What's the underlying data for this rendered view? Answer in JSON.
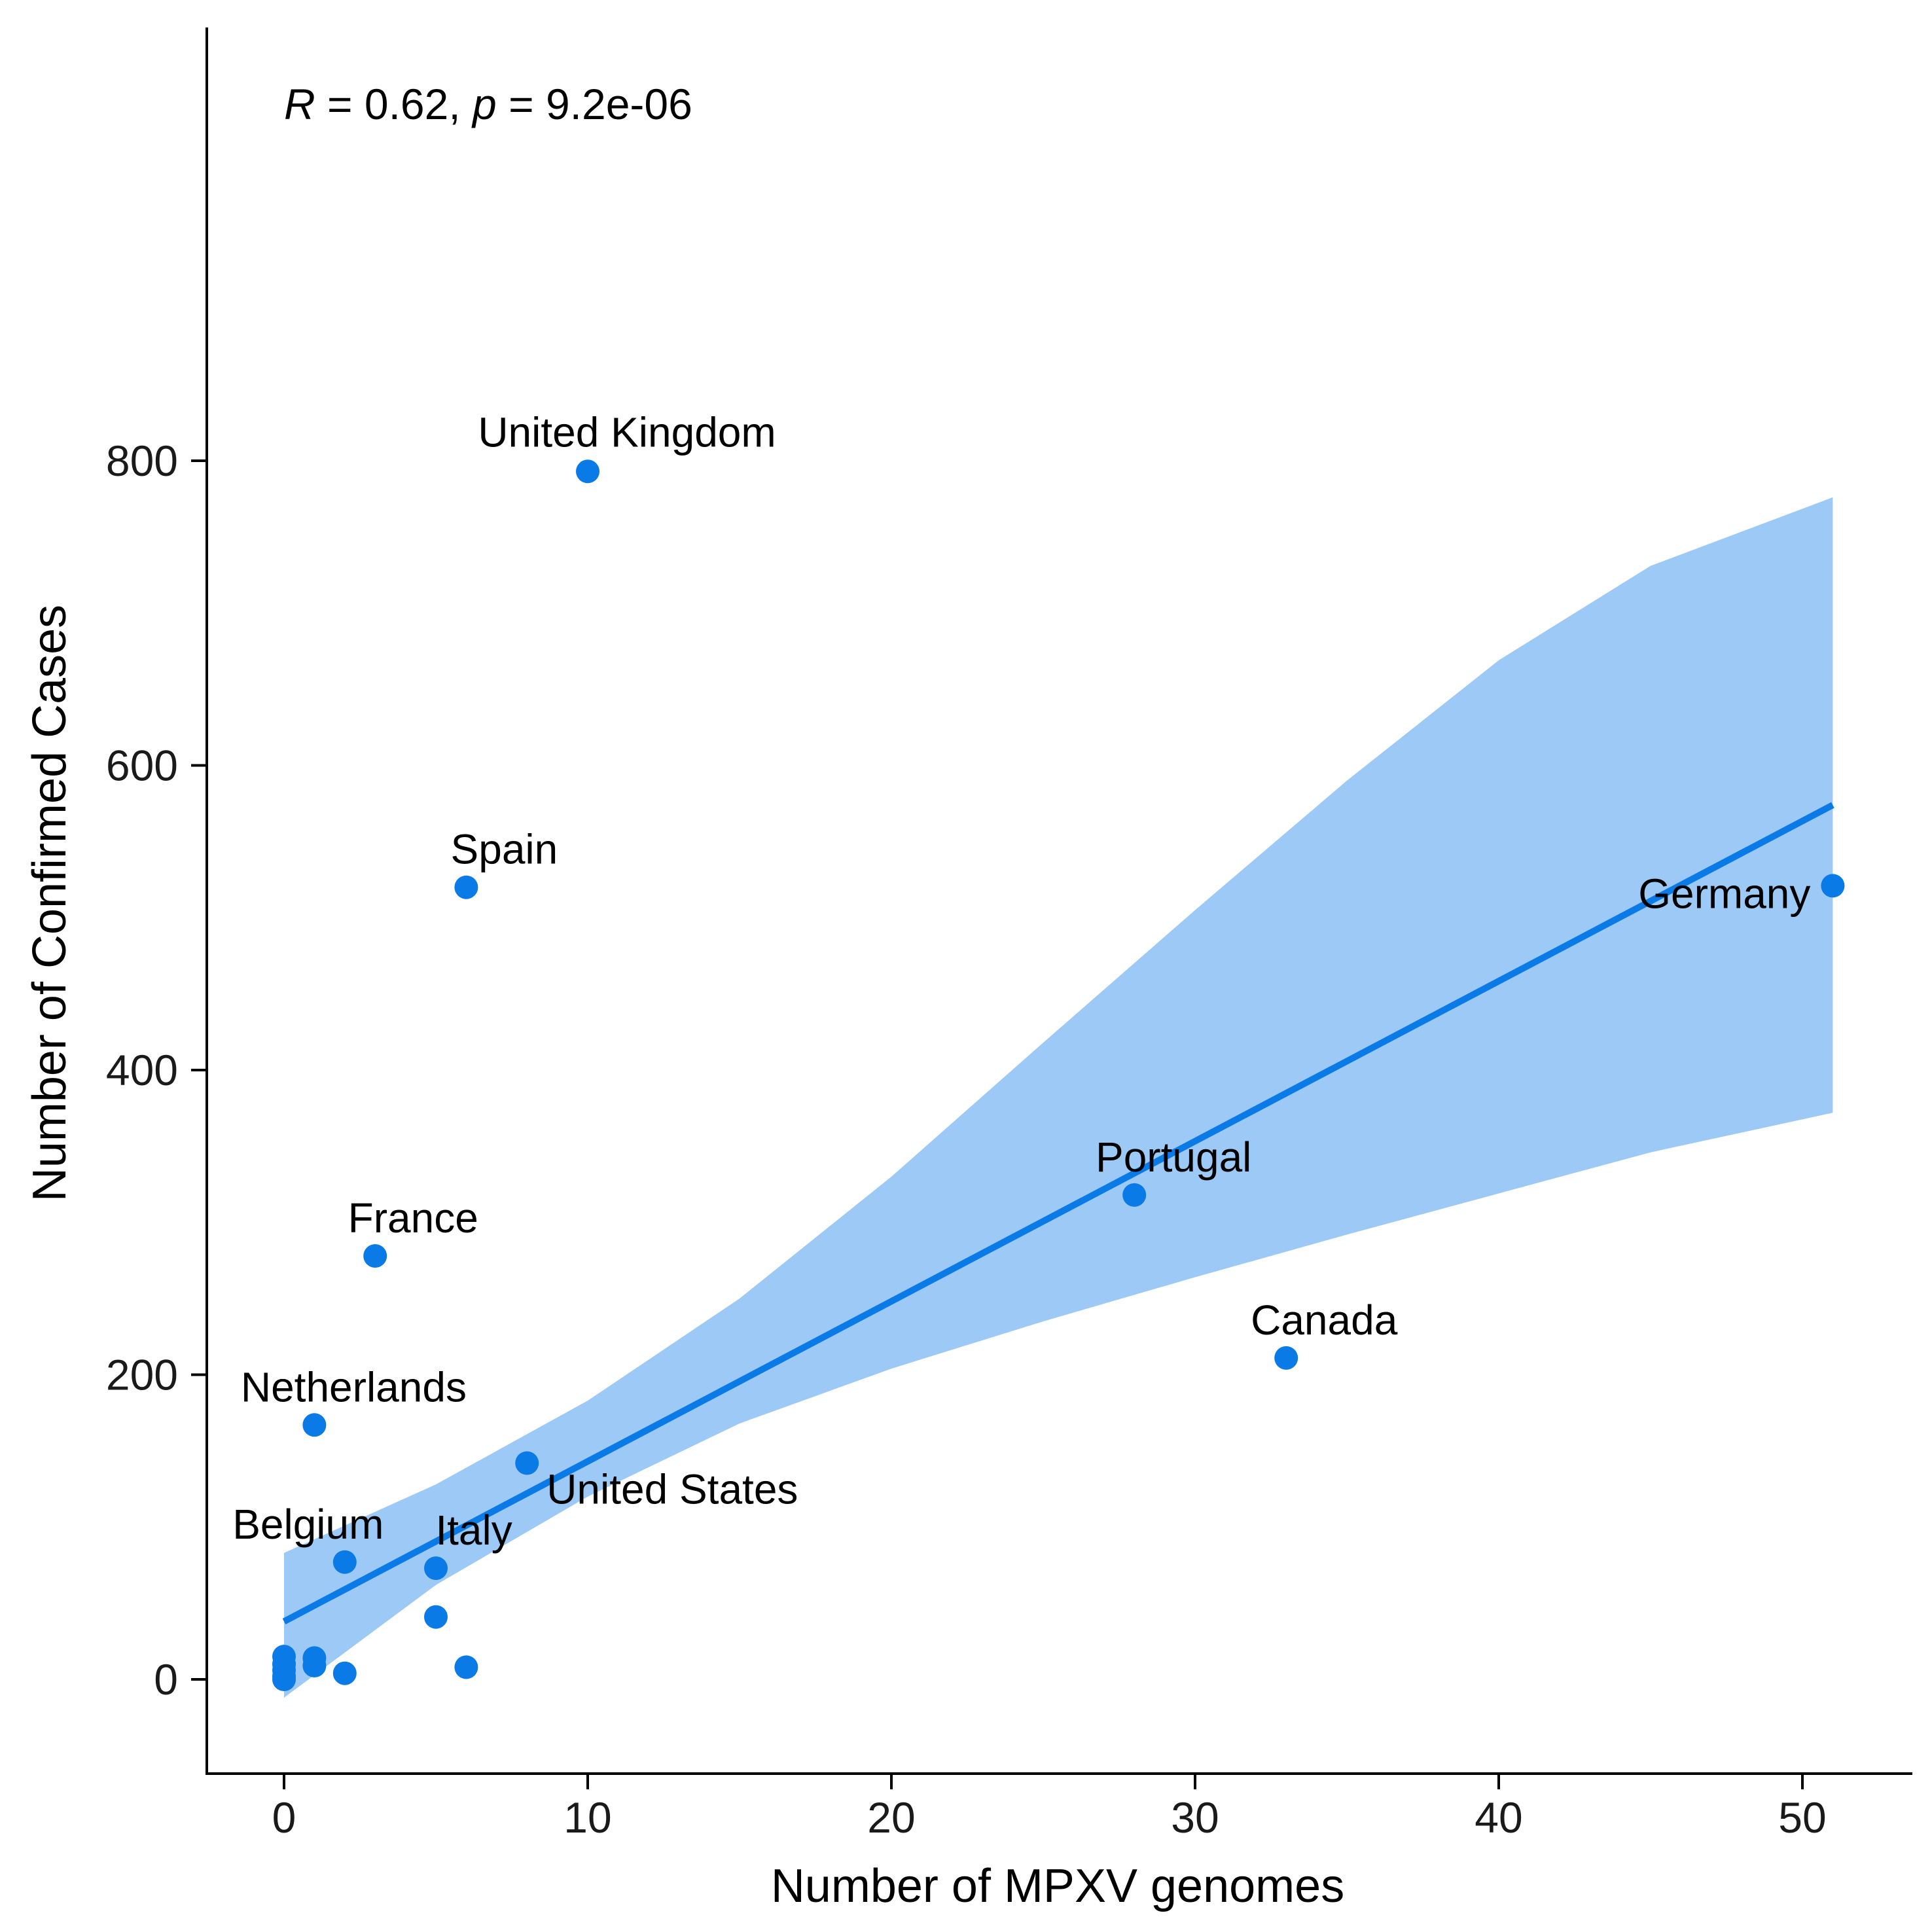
{
  "chart_data": {
    "type": "scatter",
    "title": "",
    "xlabel": "Number of MPXV genomes",
    "ylabel": "Number of Confirmed Cases",
    "xlim": [
      -2.5,
      53.8
    ],
    "ylim": [
      -48,
      866
    ],
    "x_ticks": [
      0,
      10,
      20,
      30,
      40,
      50
    ],
    "y_ticks": [
      0,
      200,
      400,
      600,
      800
    ],
    "grid": false,
    "legend": "none",
    "colors": {
      "points": "#0a7ae6",
      "line": "#0a7ae6",
      "ribbon": "#9cc9f5"
    },
    "annotation": {
      "r_symbol": "R",
      "r_text": " = 0.62, ",
      "p_symbol": "p",
      "p_text": " = 9.2e-06"
    },
    "regression": {
      "x": [
        0,
        51
      ],
      "y": [
        38,
        574
      ]
    },
    "confidence_band": {
      "x": [
        0,
        5,
        10,
        15,
        20,
        25,
        30,
        35,
        40,
        45,
        51
      ],
      "lower": [
        -12,
        62,
        120,
        168,
        204,
        235,
        264,
        292,
        319,
        346,
        372
      ],
      "upper": [
        83,
        128,
        183,
        250,
        330,
        418,
        505,
        590,
        669,
        731,
        776
      ]
    },
    "points": [
      {
        "x": 10,
        "y": 793,
        "label": "United Kingdom"
      },
      {
        "x": 6,
        "y": 520,
        "label": "Spain"
      },
      {
        "x": 51,
        "y": 521,
        "label": "Germany"
      },
      {
        "x": 28,
        "y": 318,
        "label": "Portugal"
      },
      {
        "x": 3,
        "y": 278,
        "label": "France"
      },
      {
        "x": 33,
        "y": 211,
        "label": "Canada"
      },
      {
        "x": 1,
        "y": 167,
        "label": "Netherlands"
      },
      {
        "x": 8,
        "y": 142,
        "label": "United States"
      },
      {
        "x": 2,
        "y": 77,
        "label": "Belgium"
      },
      {
        "x": 5,
        "y": 73,
        "label": "Italy"
      },
      {
        "x": 5,
        "y": 41,
        "label": ""
      },
      {
        "x": 6,
        "y": 8,
        "label": ""
      },
      {
        "x": 2,
        "y": 4,
        "label": ""
      },
      {
        "x": 1,
        "y": 14,
        "label": ""
      },
      {
        "x": 1,
        "y": 9,
        "label": ""
      },
      {
        "x": 0,
        "y": 15,
        "label": ""
      },
      {
        "x": 0,
        "y": 10,
        "label": ""
      },
      {
        "x": 0,
        "y": 6,
        "label": ""
      },
      {
        "x": 0,
        "y": 2,
        "label": ""
      },
      {
        "x": 0,
        "y": 0,
        "label": ""
      }
    ]
  }
}
